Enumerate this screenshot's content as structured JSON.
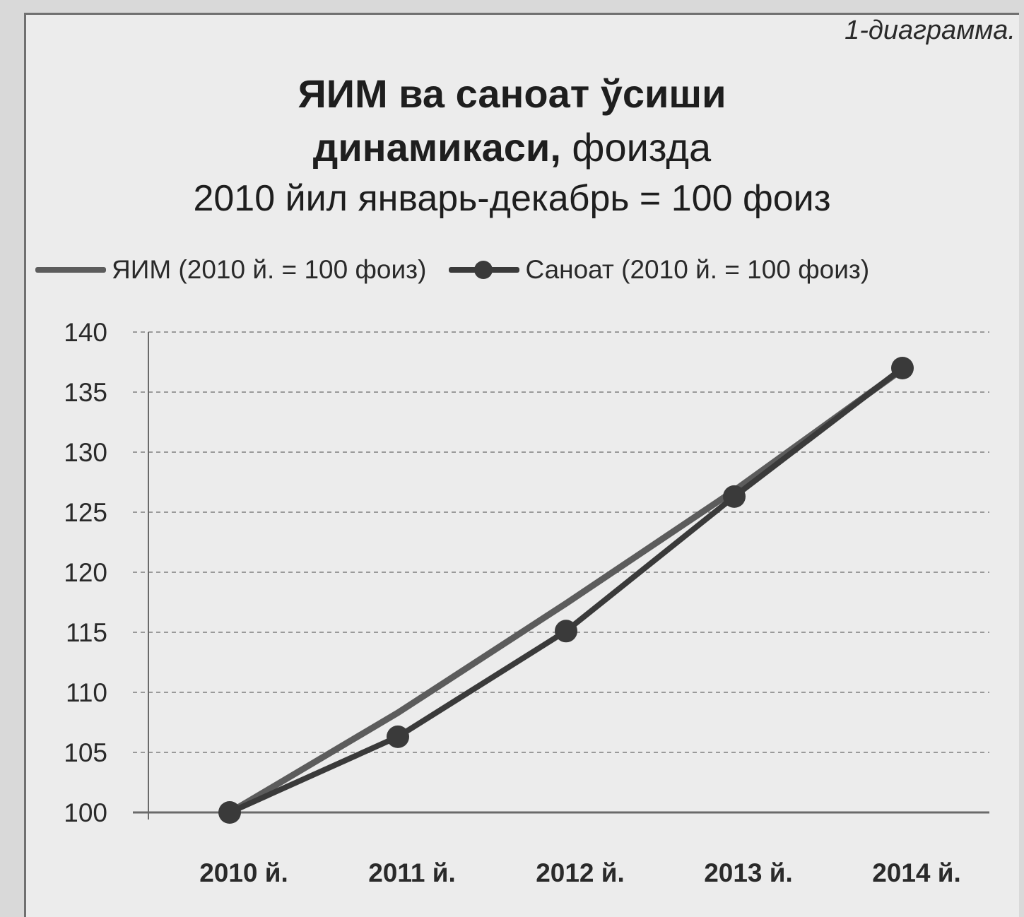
{
  "caption": "1-диаграмма.",
  "title": {
    "line1_bold": "ЯИМ ва саноат ўсиши",
    "line2_bold": "динамикаси,",
    "line2_normal": " фоизда",
    "line3": "2010 йил январь-декабрь = 100 фоиз"
  },
  "colors": {
    "yaim": "#5c5c5c",
    "sanoat": "#3a3a3a",
    "grid": "#9a9a9a",
    "axis": "#6a6a6a"
  },
  "chart_data": {
    "type": "line",
    "categories": [
      "2010 й.",
      "2011 й.",
      "2012 й.",
      "2013 й.",
      "2014 й."
    ],
    "series": [
      {
        "name": "ЯИМ (2010 й. = 100 фоиз)",
        "values": [
          100,
          108.3,
          117.4,
          126.8,
          136.9
        ],
        "marker": "none"
      },
      {
        "name": "Саноат (2010 й. = 100 фоиз)",
        "values": [
          100,
          106.3,
          115.1,
          126.3,
          137.0
        ],
        "marker": "circle"
      }
    ],
    "ylim": [
      100,
      140
    ],
    "yticks": [
      100,
      105,
      110,
      115,
      120,
      125,
      130,
      135,
      140
    ],
    "grid": true,
    "legend": "top"
  }
}
